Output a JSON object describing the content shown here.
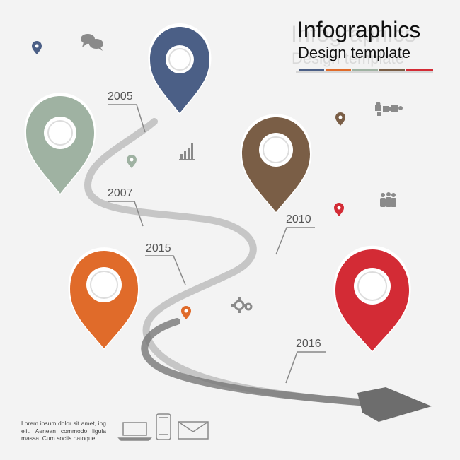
{
  "header": {
    "title": "Infographics",
    "subtitle": "Design template",
    "color_bars": [
      "#4b5f86",
      "#e06b2a",
      "#9fb2a2",
      "#7a5e46",
      "#d32b35"
    ]
  },
  "timeline": {
    "years": [
      "2005",
      "2007",
      "2010",
      "2015",
      "2016"
    ]
  },
  "pins": [
    {
      "name": "blue",
      "color": "#4b5f86"
    },
    {
      "name": "sage",
      "color": "#9fb2a2"
    },
    {
      "name": "brown",
      "color": "#7a5e46"
    },
    {
      "name": "orange",
      "color": "#e06b2a"
    },
    {
      "name": "red",
      "color": "#d32b35"
    }
  ],
  "footer": {
    "text": "Lorem ipsum dolor sit amet, ing elit. Aenean commodo ligula massa. Cum sociis natoque"
  },
  "icons": [
    "chat-bubbles-icon",
    "bar-chart-icon",
    "puzzle-icon",
    "people-icon",
    "gears-icon",
    "laptop-icon",
    "smartphone-icon",
    "envelope-icon",
    "small-pin-icon"
  ]
}
